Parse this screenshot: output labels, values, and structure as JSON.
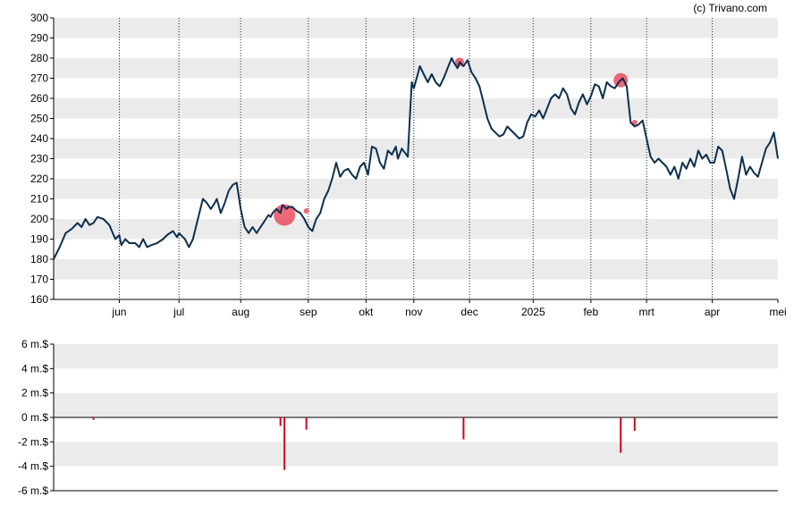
{
  "credit": "(c) Trivano.com",
  "colors": {
    "price_line": "#0d2f4f",
    "band": "#ebebeb",
    "marker": "#e8374a",
    "bar": "#d0021b"
  },
  "chart_data": [
    {
      "type": "line",
      "ylim": [
        160,
        300
      ],
      "yticks": [
        "300",
        "290",
        "280",
        "270",
        "260",
        "250",
        "240",
        "230",
        "220",
        "210",
        "200",
        "190",
        "180",
        "170",
        "160"
      ],
      "xlim": [
        0,
        364
      ],
      "month_ticks": [
        {
          "label": "jun",
          "x": 33
        },
        {
          "label": "jul",
          "x": 63
        },
        {
          "label": "aug",
          "x": 94
        },
        {
          "label": "sep",
          "x": 128
        },
        {
          "label": "okt",
          "x": 157
        },
        {
          "label": "nov",
          "x": 181
        },
        {
          "label": "dec",
          "x": 209
        },
        {
          "label": "2025",
          "x": 241
        },
        {
          "label": "feb",
          "x": 270
        },
        {
          "label": "mrt",
          "x": 298
        },
        {
          "label": "apr",
          "x": 331
        },
        {
          "label": "mei",
          "x": 364
        }
      ],
      "series": [
        {
          "points": [
            [
              0,
              180
            ],
            [
              3,
              186
            ],
            [
              6,
              193
            ],
            [
              9,
              195
            ],
            [
              12,
              198
            ],
            [
              14,
              196
            ],
            [
              16,
              200
            ],
            [
              18,
              197
            ],
            [
              20,
              198
            ],
            [
              22,
              201
            ],
            [
              25,
              200
            ],
            [
              28,
              197
            ],
            [
              31,
              190
            ],
            [
              33,
              192
            ],
            [
              34,
              187
            ],
            [
              36,
              190
            ],
            [
              38,
              188
            ],
            [
              41,
              188
            ],
            [
              43,
              186
            ],
            [
              45,
              190
            ],
            [
              47,
              186
            ],
            [
              49,
              187
            ],
            [
              52,
              188
            ],
            [
              55,
              190
            ],
            [
              57,
              192
            ],
            [
              60,
              194
            ],
            [
              62,
              191
            ],
            [
              63,
              193
            ],
            [
              66,
              190
            ],
            [
              68,
              186
            ],
            [
              70,
              190
            ],
            [
              72,
              198
            ],
            [
              75,
              210
            ],
            [
              77,
              208
            ],
            [
              79,
              205
            ],
            [
              81,
              208
            ],
            [
              82,
              210
            ],
            [
              84,
              203
            ],
            [
              86,
              208
            ],
            [
              88,
              214
            ],
            [
              90,
              217
            ],
            [
              92,
              218
            ],
            [
              94,
              205
            ],
            [
              96,
              196
            ],
            [
              98,
              193
            ],
            [
              100,
              196
            ],
            [
              102,
              193
            ],
            [
              104,
              196
            ],
            [
              106,
              199
            ],
            [
              108,
              202
            ],
            [
              109,
              201
            ],
            [
              110,
              203
            ],
            [
              112,
              205
            ],
            [
              114,
              203
            ],
            [
              115,
              207
            ],
            [
              117,
              205
            ],
            [
              118,
              206
            ],
            [
              120,
              206
            ],
            [
              122,
              204
            ],
            [
              124,
              203
            ],
            [
              126,
              200
            ],
            [
              128,
              196
            ],
            [
              130,
              194
            ],
            [
              132,
              200
            ],
            [
              134,
              203
            ],
            [
              136,
              210
            ],
            [
              138,
              214
            ],
            [
              140,
              220
            ],
            [
              142,
              228
            ],
            [
              144,
              221
            ],
            [
              146,
              224
            ],
            [
              148,
              225
            ],
            [
              150,
              222
            ],
            [
              152,
              220
            ],
            [
              154,
              226
            ],
            [
              156,
              228
            ],
            [
              158,
              222
            ],
            [
              160,
              236
            ],
            [
              162,
              235
            ],
            [
              164,
              228
            ],
            [
              166,
              225
            ],
            [
              168,
              234
            ],
            [
              170,
              232
            ],
            [
              172,
              236
            ],
            [
              173,
              230
            ],
            [
              175,
              235
            ],
            [
              178,
              231
            ],
            [
              179,
              250
            ],
            [
              180,
              268
            ],
            [
              181,
              265
            ],
            [
              183,
              272
            ],
            [
              184,
              276
            ],
            [
              186,
              272
            ],
            [
              188,
              268
            ],
            [
              190,
              272
            ],
            [
              192,
              268
            ],
            [
              194,
              266
            ],
            [
              196,
              270
            ],
            [
              198,
              275
            ],
            [
              200,
              280
            ],
            [
              201,
              278
            ],
            [
              203,
              275
            ],
            [
              204,
              278
            ],
            [
              206,
              276
            ],
            [
              208,
              279
            ],
            [
              210,
              273
            ],
            [
              212,
              270
            ],
            [
              214,
              266
            ],
            [
              216,
              258
            ],
            [
              218,
              250
            ],
            [
              220,
              245
            ],
            [
              222,
              243
            ],
            [
              224,
              241
            ],
            [
              226,
              242
            ],
            [
              228,
              246
            ],
            [
              230,
              244
            ],
            [
              232,
              242
            ],
            [
              234,
              240
            ],
            [
              236,
              241
            ],
            [
              238,
              248
            ],
            [
              240,
              252
            ],
            [
              242,
              251
            ],
            [
              244,
              254
            ],
            [
              246,
              250
            ],
            [
              248,
              255
            ],
            [
              250,
              260
            ],
            [
              252,
              262
            ],
            [
              254,
              260
            ],
            [
              256,
              265
            ],
            [
              258,
              262
            ],
            [
              260,
              255
            ],
            [
              262,
              252
            ],
            [
              264,
              258
            ],
            [
              266,
              262
            ],
            [
              268,
              257
            ],
            [
              270,
              261
            ],
            [
              272,
              267
            ],
            [
              274,
              266
            ],
            [
              276,
              260
            ],
            [
              278,
              268
            ],
            [
              280,
              266
            ],
            [
              282,
              265
            ],
            [
              284,
              268
            ],
            [
              286,
              270
            ],
            [
              288,
              266
            ],
            [
              290,
              248
            ],
            [
              292,
              246
            ],
            [
              294,
              247
            ],
            [
              296,
              249
            ],
            [
              298,
              240
            ],
            [
              300,
              231
            ],
            [
              302,
              228
            ],
            [
              304,
              230
            ],
            [
              306,
              228
            ],
            [
              308,
              226
            ],
            [
              310,
              222
            ],
            [
              312,
              226
            ],
            [
              314,
              220
            ],
            [
              316,
              228
            ],
            [
              318,
              225
            ],
            [
              320,
              230
            ],
            [
              322,
              226
            ],
            [
              324,
              234
            ],
            [
              326,
              230
            ],
            [
              328,
              232
            ],
            [
              330,
              228
            ],
            [
              332,
              228
            ],
            [
              334,
              236
            ],
            [
              336,
              234
            ],
            [
              338,
              225
            ],
            [
              340,
              215
            ],
            [
              342,
              210
            ],
            [
              344,
              220
            ],
            [
              346,
              231
            ],
            [
              348,
              222
            ],
            [
              350,
              226
            ],
            [
              352,
              223
            ],
            [
              354,
              221
            ],
            [
              356,
              228
            ],
            [
              358,
              235
            ],
            [
              360,
              238
            ],
            [
              362,
              243
            ],
            [
              364,
              230
            ]
          ]
        }
      ],
      "markers": [
        {
          "x": 116,
          "y": 202,
          "size": "large"
        },
        {
          "x": 204,
          "y": 278,
          "size": "small"
        },
        {
          "x": 127,
          "y": 204,
          "size": "tiny"
        },
        {
          "x": 285,
          "y": 269,
          "size": "medium"
        },
        {
          "x": 292,
          "y": 248,
          "size": "tiny"
        }
      ]
    },
    {
      "type": "bar",
      "unit": "m.$",
      "ylim": [
        -6,
        6
      ],
      "yticks": [
        "6 m.$",
        "4 m.$",
        "2 m.$",
        "0 m.$",
        "-2 m.$",
        "-4 m.$",
        "-6 m.$"
      ],
      "bars": [
        {
          "x": 20,
          "value": -0.2
        },
        {
          "x": 114,
          "value": -0.7
        },
        {
          "x": 116,
          "value": -4.3
        },
        {
          "x": 127,
          "value": -1.0
        },
        {
          "x": 206,
          "value": -1.8
        },
        {
          "x": 285,
          "value": -2.9
        },
        {
          "x": 292,
          "value": -1.1
        }
      ]
    }
  ]
}
